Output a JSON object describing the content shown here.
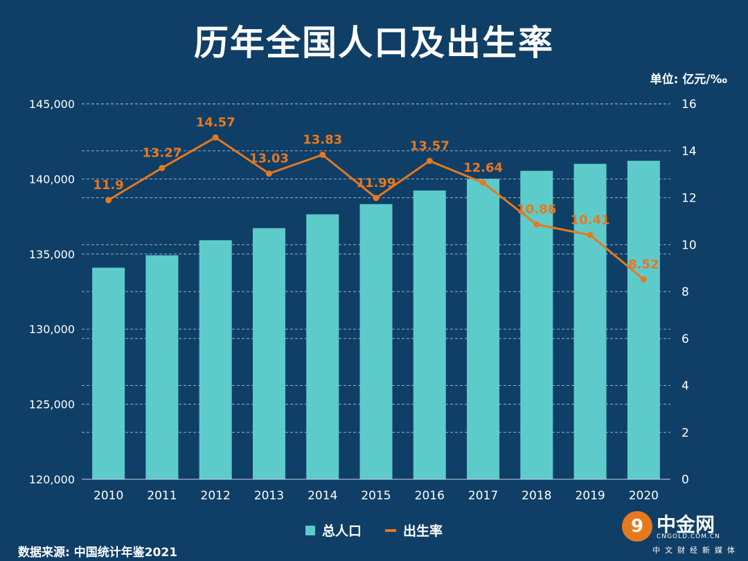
{
  "title": "历年全国人口及出生率",
  "unit_label": "单位: 亿元/‰",
  "source": "数据来源: 中国统计年鉴2021",
  "logo": {
    "name": "中金网",
    "url": "CNGOLD.COM.CN",
    "sub": "中文财经新媒体"
  },
  "legend": {
    "bar": "总人口",
    "line": "出生率"
  },
  "colors": {
    "background": "#0f3f66",
    "bar": "#5ecbcb",
    "line": "#e8781e",
    "text": "#ffffff"
  },
  "chart_data": {
    "type": "bar",
    "categories": [
      "2010",
      "2011",
      "2012",
      "2013",
      "2014",
      "2015",
      "2016",
      "2017",
      "2018",
      "2019",
      "2020"
    ],
    "series": [
      {
        "name": "总人口",
        "type": "bar",
        "axis": "left",
        "values": [
          134091,
          134916,
          135922,
          136726,
          137646,
          138326,
          139232,
          140011,
          140541,
          141008,
          141212
        ]
      },
      {
        "name": "出生率",
        "type": "line",
        "axis": "right",
        "values": [
          11.9,
          13.27,
          14.57,
          13.03,
          13.83,
          11.99,
          13.57,
          12.64,
          10.86,
          10.41,
          8.52
        ],
        "labels": [
          "11.9",
          "13.27",
          "14.57",
          "13.03",
          "13.83",
          "11.99",
          "13.57",
          "12.64",
          "10.86",
          "10.41",
          "8.52"
        ]
      }
    ],
    "y_left": {
      "ylim": [
        120000,
        145000
      ],
      "ticks": [
        "120,000",
        "125,000",
        "130,000",
        "135,000",
        "140,000",
        "145,000"
      ]
    },
    "y_right": {
      "ylim": [
        0,
        16
      ],
      "ticks": [
        "0",
        "2",
        "4",
        "6",
        "8",
        "10",
        "12",
        "14",
        "16"
      ]
    },
    "grid": true
  }
}
